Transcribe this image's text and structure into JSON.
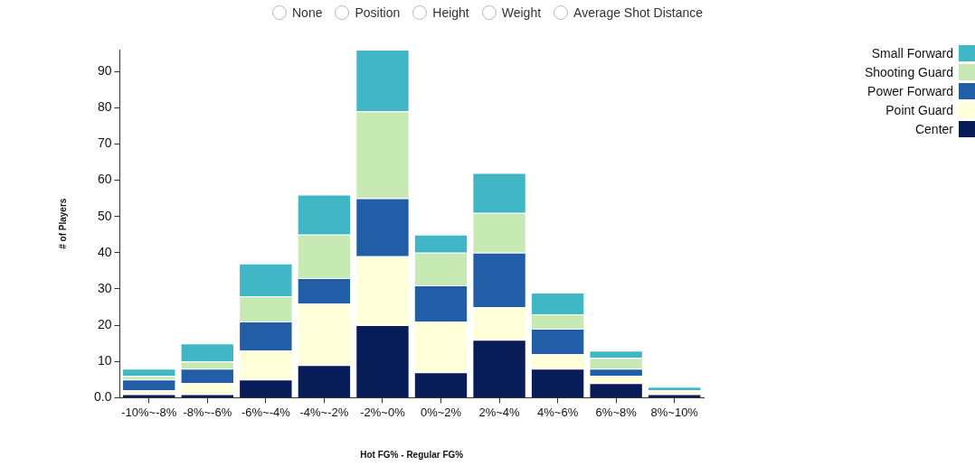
{
  "chart_data": {
    "type": "bar",
    "stacked": true,
    "xlabel": "Hot FG% - Regular FG%",
    "ylabel": "# of Players",
    "categories": [
      "-10%~-8%",
      "-8%~-6%",
      "-6%~-4%",
      "-4%~-2%",
      "-2%~0%",
      "0%~2%",
      "2%~4%",
      "4%~6%",
      "6%~8%",
      "8%~10%"
    ],
    "series": [
      {
        "name": "Center",
        "color": "#081d58",
        "values": [
          1,
          1,
          5,
          9,
          20,
          7,
          16,
          8,
          4,
          1
        ]
      },
      {
        "name": "Point Guard",
        "color": "#ffffd9",
        "values": [
          1,
          3,
          8,
          17,
          19,
          14,
          9,
          4,
          2,
          1
        ]
      },
      {
        "name": "Power Forward",
        "color": "#225ea8",
        "values": [
          3,
          4,
          8,
          7,
          16,
          10,
          15,
          7,
          2,
          0
        ]
      },
      {
        "name": "Shooting Guard",
        "color": "#c7e9b4",
        "values": [
          1,
          2,
          7,
          12,
          24,
          9,
          11,
          4,
          3,
          0
        ]
      },
      {
        "name": "Small Forward",
        "color": "#41b6c4",
        "values": [
          2,
          5,
          9,
          11,
          17,
          5,
          11,
          6,
          2,
          1
        ]
      }
    ],
    "ylim": [
      0,
      96
    ],
    "yticks": [
      {
        "value": 0,
        "label": "0.0"
      },
      10,
      20,
      30,
      40,
      50,
      60,
      70,
      80,
      90
    ],
    "grid": false,
    "legend": "top right",
    "annotations": [
      "None",
      "Position",
      "Height",
      "Weight",
      "Average Shot Distance"
    ]
  }
}
